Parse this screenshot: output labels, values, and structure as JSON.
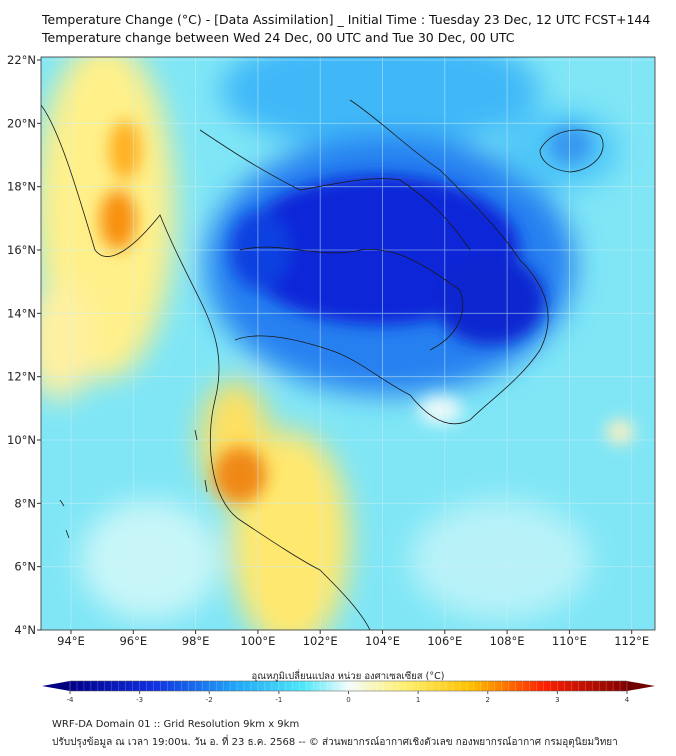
{
  "header": {
    "title": "Temperature Change (°C) - [Data Assimilation] _ Initial Time : Tuesday 23 Dec, 12 UTC FCST+144",
    "subtitle": "Temperature change between Wed 24 Dec, 00 UTC and Tue 30 Dec, 00 UTC"
  },
  "map": {
    "lat_labels": [
      "22°N",
      "20°N",
      "18°N",
      "16°N",
      "14°N",
      "12°N",
      "10°N",
      "8°N",
      "6°N",
      "4°N"
    ],
    "lon_labels": [
      "94°E",
      "96°E",
      "98°E",
      "100°E",
      "102°E",
      "104°E",
      "106°E",
      "108°E",
      "110°E",
      "112°E"
    ],
    "colors": {
      "cold_max": "#0010c8",
      "cold": "#1e6ef0",
      "cool": "#7fe6f8",
      "neutral": "#e8fbfb",
      "warm": "#ffee70",
      "hot": "#f08010"
    }
  },
  "colorbar": {
    "title": "อุณหภูมิเปลี่ยนแปลง หน่วย องศาเซลเซียส (°C)",
    "ticks": [
      "-4",
      "-3",
      "-2",
      "-1",
      "0",
      "1",
      "2",
      "3",
      "4"
    ],
    "min": -4,
    "max": 4
  },
  "footer": {
    "line1": "WRF-DA Domain 01 :: Grid Resolution 9km x 9km",
    "line2": "ปรับปรุงข้อมูล ณ เวลา 19:00น. วัน อ. ที่ 23 ธ.ค. 2568 -- © ส่วนพยากรณ์อากาศเชิงตัวเลข กองพยากรณ์อากาศ กรมอุตุนิยมวิทยา"
  }
}
